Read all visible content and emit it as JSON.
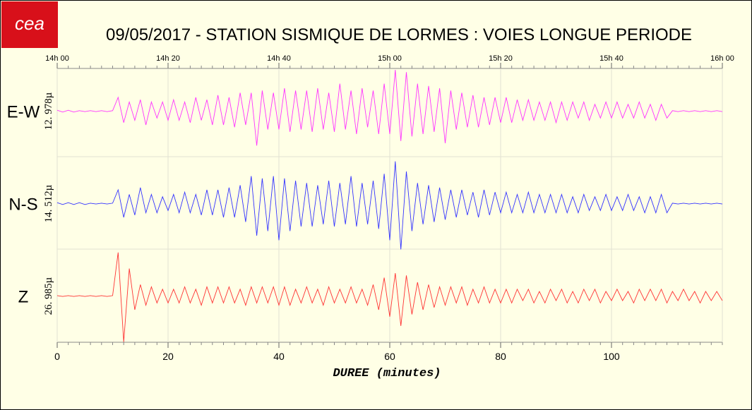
{
  "logo": "cea",
  "chart_data": {
    "type": "line",
    "title": "09/05/2017  -  STATION SISMIQUE DE LORMES : VOIES LONGUE PERIODE",
    "xlabel": "DUREE (minutes)",
    "xlim": [
      0,
      120
    ],
    "xticks": [
      0,
      20,
      40,
      60,
      80,
      100
    ],
    "x2ticks": [
      {
        "value": 0,
        "label": "14h 00"
      },
      {
        "value": 20,
        "label": "14h 20"
      },
      {
        "value": 40,
        "label": "14h 40"
      },
      {
        "value": 60,
        "label": "15h 00"
      },
      {
        "value": 80,
        "label": "15h 20"
      },
      {
        "value": 100,
        "label": "15h 40"
      },
      {
        "value": 120,
        "label": "16h 00"
      }
    ],
    "ylim": [
      -1,
      1
    ],
    "grid": true,
    "x": [
      0,
      1,
      2,
      3,
      4,
      5,
      6,
      7,
      8,
      9,
      10,
      11,
      12,
      13,
      14,
      15,
      16,
      17,
      18,
      19,
      20,
      21,
      22,
      23,
      24,
      25,
      26,
      27,
      28,
      29,
      30,
      31,
      32,
      33,
      34,
      35,
      36,
      37,
      38,
      39,
      40,
      41,
      42,
      43,
      44,
      45,
      46,
      47,
      48,
      49,
      50,
      51,
      52,
      53,
      54,
      55,
      56,
      57,
      58,
      59,
      60,
      61,
      62,
      63,
      64,
      65,
      66,
      67,
      68,
      69,
      70,
      71,
      72,
      73,
      74,
      75,
      76,
      77,
      78,
      79,
      80,
      81,
      82,
      83,
      84,
      85,
      86,
      87,
      88,
      89,
      90,
      91,
      92,
      93,
      94,
      95,
      96,
      97,
      98,
      99,
      100,
      101,
      102,
      103,
      104,
      105,
      106,
      107,
      108,
      109,
      110,
      111,
      112,
      113,
      114,
      115,
      116,
      117,
      118,
      119,
      120
    ],
    "series": [
      {
        "name": "E-W",
        "scale_label": "12. 978µ",
        "color": "#ff33ff",
        "values": [
          0.02,
          -0.02,
          0.02,
          -0.02,
          0.01,
          -0.01,
          0.01,
          -0.01,
          0.01,
          -0.01,
          0.01,
          0.3,
          -0.25,
          0.2,
          -0.2,
          0.25,
          -0.3,
          0.2,
          -0.15,
          0.2,
          -0.2,
          0.25,
          -0.2,
          0.2,
          -0.25,
          0.3,
          -0.2,
          0.25,
          -0.3,
          0.35,
          -0.3,
          0.3,
          -0.35,
          0.4,
          -0.3,
          0.4,
          -0.75,
          0.45,
          -0.4,
          0.4,
          -0.4,
          0.5,
          -0.45,
          0.45,
          -0.4,
          0.45,
          -0.45,
          0.5,
          -0.4,
          0.4,
          -0.45,
          0.6,
          -0.4,
          0.45,
          -0.5,
          0.5,
          -0.35,
          0.45,
          -0.5,
          0.6,
          -0.5,
          0.9,
          -0.65,
          0.85,
          -0.55,
          0.6,
          -0.5,
          0.55,
          -0.45,
          0.5,
          -0.7,
          0.45,
          -0.4,
          0.4,
          -0.35,
          0.35,
          -0.35,
          0.3,
          -0.3,
          0.3,
          -0.25,
          0.3,
          -0.25,
          0.25,
          -0.2,
          0.25,
          -0.2,
          0.2,
          -0.2,
          0.2,
          -0.25,
          0.2,
          -0.2,
          0.2,
          -0.15,
          0.2,
          -0.2,
          0.15,
          -0.15,
          0.2,
          -0.15,
          0.2,
          -0.15,
          0.15,
          -0.15,
          0.2,
          -0.15,
          0.15,
          -0.2,
          0.15,
          -0.15,
          0.01,
          -0.01,
          0.01,
          -0.01,
          0.01,
          -0.01,
          0.01,
          -0.01,
          0.01,
          -0.01
        ]
      },
      {
        "name": "N-S",
        "scale_label": "14. 512µ",
        "color": "#3333ff",
        "values": [
          0.02,
          -0.02,
          0.02,
          -0.02,
          0.02,
          -0.02,
          0.01,
          -0.01,
          0.01,
          -0.01,
          0.01,
          0.3,
          -0.3,
          0.2,
          -0.25,
          0.35,
          -0.2,
          0.2,
          -0.2,
          0.15,
          -0.15,
          0.2,
          -0.2,
          0.25,
          -0.2,
          0.2,
          -0.25,
          0.3,
          -0.25,
          0.3,
          -0.3,
          0.35,
          -0.3,
          0.4,
          -0.4,
          0.6,
          -0.7,
          0.55,
          -0.6,
          0.6,
          -0.8,
          0.55,
          -0.6,
          0.5,
          -0.5,
          0.45,
          -0.5,
          0.4,
          -0.45,
          0.5,
          -0.5,
          0.45,
          -0.45,
          0.6,
          -0.5,
          0.45,
          -0.45,
          0.5,
          -0.55,
          0.65,
          -0.8,
          0.92,
          -1.0,
          0.7,
          -0.6,
          0.45,
          -0.45,
          0.4,
          -0.4,
          0.35,
          -0.35,
          0.3,
          -0.3,
          0.3,
          -0.25,
          0.25,
          -0.3,
          0.3,
          -0.25,
          0.25,
          -0.2,
          0.25,
          -0.2,
          0.2,
          -0.2,
          0.25,
          -0.2,
          0.2,
          -0.2,
          0.2,
          -0.2,
          0.2,
          -0.2,
          0.15,
          -0.2,
          0.2,
          -0.15,
          0.15,
          -0.15,
          0.2,
          -0.15,
          0.15,
          -0.15,
          0.2,
          -0.15,
          0.15,
          -0.2,
          0.15,
          -0.2,
          0.2,
          -0.2,
          0.01,
          -0.01,
          0.01,
          -0.01,
          0.01,
          -0.01,
          0.01,
          -0.01,
          0.01,
          -0.01
        ]
      },
      {
        "name": "Z",
        "scale_label": "26. 985µ",
        "color": "#ff3333",
        "values": [
          0.01,
          -0.01,
          0.01,
          -0.01,
          0.01,
          -0.01,
          0.01,
          -0.01,
          0.01,
          -0.01,
          0.01,
          0.95,
          -1.0,
          0.6,
          -0.3,
          0.25,
          -0.2,
          0.2,
          -0.15,
          0.15,
          -0.15,
          0.15,
          -0.15,
          0.2,
          -0.15,
          0.15,
          -0.2,
          0.2,
          -0.15,
          0.2,
          -0.15,
          0.2,
          -0.15,
          0.15,
          -0.2,
          0.2,
          -0.15,
          0.2,
          -0.15,
          0.2,
          -0.2,
          0.2,
          -0.2,
          0.15,
          -0.15,
          0.2,
          -0.15,
          0.15,
          -0.2,
          0.2,
          -0.15,
          0.15,
          -0.15,
          0.2,
          -0.15,
          0.15,
          -0.2,
          0.25,
          -0.3,
          0.4,
          -0.45,
          0.5,
          -0.65,
          0.45,
          -0.4,
          0.3,
          -0.3,
          0.25,
          -0.25,
          0.2,
          -0.2,
          0.2,
          -0.15,
          0.2,
          -0.2,
          0.15,
          -0.15,
          0.2,
          -0.15,
          0.15,
          -0.15,
          0.15,
          -0.15,
          0.15,
          -0.1,
          0.15,
          -0.15,
          0.1,
          -0.15,
          0.15,
          -0.1,
          0.15,
          -0.15,
          0.1,
          -0.15,
          0.15,
          -0.1,
          0.15,
          -0.15,
          0.1,
          -0.1,
          0.15,
          -0.1,
          0.1,
          -0.15,
          0.15,
          -0.1,
          0.15,
          -0.1,
          0.15,
          -0.15,
          0.1,
          -0.1,
          0.15,
          -0.1,
          0.1,
          -0.15,
          0.1,
          -0.1,
          0.1,
          -0.1
        ]
      }
    ]
  }
}
